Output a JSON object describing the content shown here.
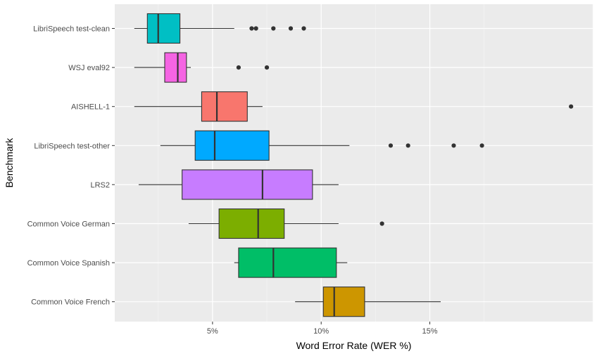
{
  "chart_data": {
    "type": "boxplot",
    "orientation": "horizontal",
    "xlabel": "Word Error Rate (WER %)",
    "ylabel": "Benchmark",
    "xlim": [
      0.5,
      22.5
    ],
    "x_ticks": [
      5,
      10,
      15
    ],
    "x_tick_labels": [
      "5%",
      "10%",
      "15%"
    ],
    "grid": true,
    "legend": "none",
    "categories_top_to_bottom": [
      "LibriSpeech test-clean",
      "WSJ eval92",
      "AISHELL-1",
      "LibriSpeech test-other",
      "LRS2",
      "Common Voice German",
      "Common Voice Spanish",
      "Common Voice French"
    ],
    "series": [
      {
        "category": "LibriSpeech test-clean",
        "color": "#00BFC4",
        "whisker_low": 1.4,
        "q1": 2.0,
        "median": 2.5,
        "q3": 3.5,
        "whisker_high": 6.0,
        "outliers": [
          6.8,
          7.0,
          7.8,
          8.6,
          9.2
        ]
      },
      {
        "category": "WSJ eval92",
        "color": "#F564E3",
        "whisker_low": 1.4,
        "q1": 2.8,
        "median": 3.4,
        "q3": 3.8,
        "whisker_high": 4.0,
        "outliers": [
          6.2,
          7.5
        ]
      },
      {
        "category": "AISHELL-1",
        "color": "#F8766D",
        "whisker_low": 1.4,
        "q1": 4.5,
        "median": 5.2,
        "q3": 6.6,
        "whisker_high": 7.3,
        "outliers": [
          21.5
        ]
      },
      {
        "category": "LibriSpeech test-other",
        "color": "#00A9FF",
        "whisker_low": 2.6,
        "q1": 4.2,
        "median": 5.1,
        "q3": 7.6,
        "whisker_high": 11.3,
        "outliers": [
          13.2,
          14.0,
          16.1,
          17.4
        ]
      },
      {
        "category": "LRS2",
        "color": "#C77CFF",
        "whisker_low": 1.6,
        "q1": 3.6,
        "median": 7.3,
        "q3": 9.6,
        "whisker_high": 10.8,
        "outliers": []
      },
      {
        "category": "Common Voice German",
        "color": "#7CAE00",
        "whisker_low": 3.9,
        "q1": 5.3,
        "median": 7.1,
        "q3": 8.3,
        "whisker_high": 10.8,
        "outliers": [
          12.8
        ]
      },
      {
        "category": "Common Voice Spanish",
        "color": "#00BE67",
        "whisker_low": 6.0,
        "q1": 6.2,
        "median": 7.8,
        "q3": 10.7,
        "whisker_high": 11.2,
        "outliers": []
      },
      {
        "category": "Common Voice French",
        "color": "#CD9600",
        "whisker_low": 8.8,
        "q1": 10.1,
        "median": 10.6,
        "q3": 12.0,
        "whisker_high": 15.5,
        "outliers": []
      }
    ]
  }
}
